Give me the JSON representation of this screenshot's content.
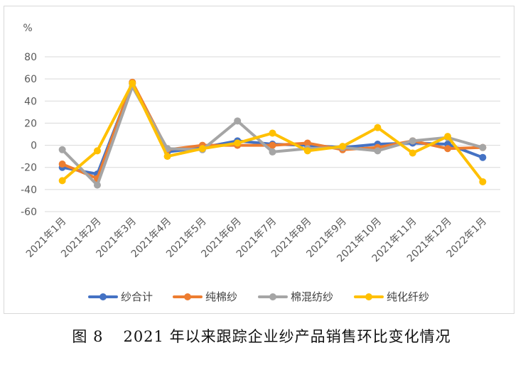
{
  "caption": {
    "figure_label": "图 8",
    "text": "2021 年以来跟踪企业纱产品销售环比变化情况"
  },
  "chart_data": {
    "type": "line",
    "ylabel": "%",
    "ylim": [
      -60,
      80
    ],
    "yticks": [
      80,
      60,
      40,
      20,
      0,
      -20,
      -40,
      -60
    ],
    "grid": true,
    "legend_position": "bottom",
    "categories": [
      "2021年1月",
      "2021年2月",
      "2021年3月",
      "2021年4月",
      "2021年5月",
      "2021年6月",
      "2021年7月",
      "2021年8月",
      "2021年9月",
      "2021年10月",
      "2021年11月",
      "2021年12月",
      "2022年1月"
    ],
    "series": [
      {
        "name": "纱合计",
        "color": "#4472c4",
        "values": [
          -20,
          -26,
          56,
          -6,
          -2,
          4,
          1,
          0,
          -2,
          1,
          2,
          1,
          -11
        ]
      },
      {
        "name": "纯棉纱",
        "color": "#ed7d31",
        "values": [
          -17,
          -30,
          57,
          -4,
          0,
          0,
          0,
          2,
          -4,
          -2,
          4,
          -3,
          -2
        ]
      },
      {
        "name": "棉混纺纱",
        "color": "#a5a5a5",
        "values": [
          -4,
          -36,
          53,
          -3,
          -4,
          22,
          -6,
          -3,
          -2,
          -5,
          4,
          7,
          -2
        ]
      },
      {
        "name": "纯化纤纱",
        "color": "#ffc000",
        "values": [
          -32,
          -5,
          56,
          -10,
          -3,
          2,
          11,
          -5,
          -1,
          16,
          -7,
          8,
          -33
        ]
      }
    ]
  }
}
